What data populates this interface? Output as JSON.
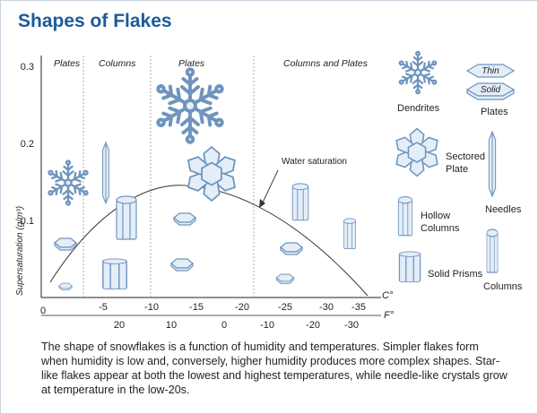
{
  "title": "Shapes of Flakes",
  "chart": {
    "y_axis_label": "Supersaturation (g/m³)",
    "y_ticks": [
      "0.3",
      "0.2",
      "0.1",
      "0"
    ],
    "celsius_unit": "C°",
    "fahrenheit_unit": "F°",
    "celsius_ticks": [
      "0",
      "-5",
      "-10",
      "-15",
      "-20",
      "-25",
      "-30",
      "-35"
    ],
    "fahrenheit_ticks": [
      "20",
      "10",
      "0",
      "-10",
      "-20",
      "-30"
    ],
    "regions": [
      "Plates",
      "Columns",
      "Plates",
      "Columns and Plates"
    ],
    "curve_label": "Water saturation"
  },
  "legend": {
    "dendrites": "Dendrites",
    "thin": "Thin",
    "solid": "Solid",
    "plates": "Plates",
    "sectored_line1": "Sectored",
    "sectored_line2": "Plate",
    "needles": "Needles",
    "hollow_line1": "Hollow",
    "hollow_line2": "Columns",
    "solid_prisms": "Solid Prisms",
    "columns": "Columns"
  },
  "caption": "The shape of snowflakes is a function of humidity and temperatures. Simpler flakes form when humidity is low and, conversely, higher humidity produces more complex shapes. Star-like flakes appear at both the lowest and highest temperatures, while needle-like crystals grow at temperature in the low-20s.",
  "colors": {
    "title": "#1d5a9a",
    "crystal_stroke": "#6f94bd",
    "crystal_fill": "#e4eef8",
    "axis": "#222222"
  }
}
